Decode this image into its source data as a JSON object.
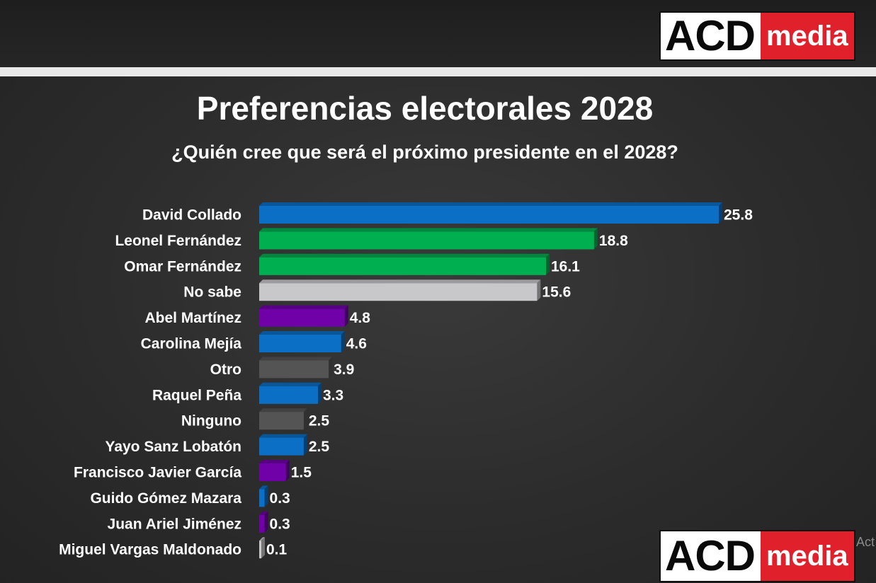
{
  "logo": {
    "acd": "ACD",
    "media": "media"
  },
  "title": "Preferencias electorales 2028",
  "subtitle": "¿Quién cree que será el próximo presidente en el 2028?",
  "watermark": "Act",
  "colors": {
    "blue": "#0b6fc6",
    "green": "#00b050",
    "lightgray": "#c8c8ca",
    "purple": "#7000a8",
    "darkgray": "#545454",
    "background": "#2b2b2b"
  },
  "chart_data": {
    "type": "bar",
    "orientation": "horizontal",
    "title": "Preferencias electorales 2028",
    "subtitle": "¿Quién cree que será el próximo presidente en el 2028?",
    "xlabel": "",
    "ylabel": "",
    "xlim": [
      0,
      25.8
    ],
    "categories": [
      "David Collado",
      "Leonel Fernández",
      "Omar Fernández",
      "No sabe",
      "Abel Martínez",
      "Carolina Mejía",
      "Otro",
      "Raquel Peña",
      "Ninguno",
      "Yayo Sanz Lobatón",
      "Francisco Javier García",
      "Guido Gómez Mazara",
      "Juan Ariel Jiménez",
      "Miguel Vargas Maldonado"
    ],
    "values": [
      25.8,
      18.8,
      16.1,
      15.6,
      4.8,
      4.6,
      3.9,
      3.3,
      2.5,
      2.5,
      1.5,
      0.3,
      0.3,
      0.1
    ],
    "value_labels": [
      "25.8",
      "18.8",
      "16.1",
      "15.6",
      "4.8",
      "4.6",
      "3.9",
      "3.3",
      "2.5",
      "2.5",
      "1.5",
      "0.3",
      "0.3",
      "0.1"
    ],
    "bar_colors": [
      "blue",
      "green",
      "green",
      "lightgray",
      "purple",
      "blue",
      "darkgray",
      "blue",
      "darkgray",
      "blue",
      "purple",
      "blue",
      "purple",
      "lightgray"
    ]
  }
}
